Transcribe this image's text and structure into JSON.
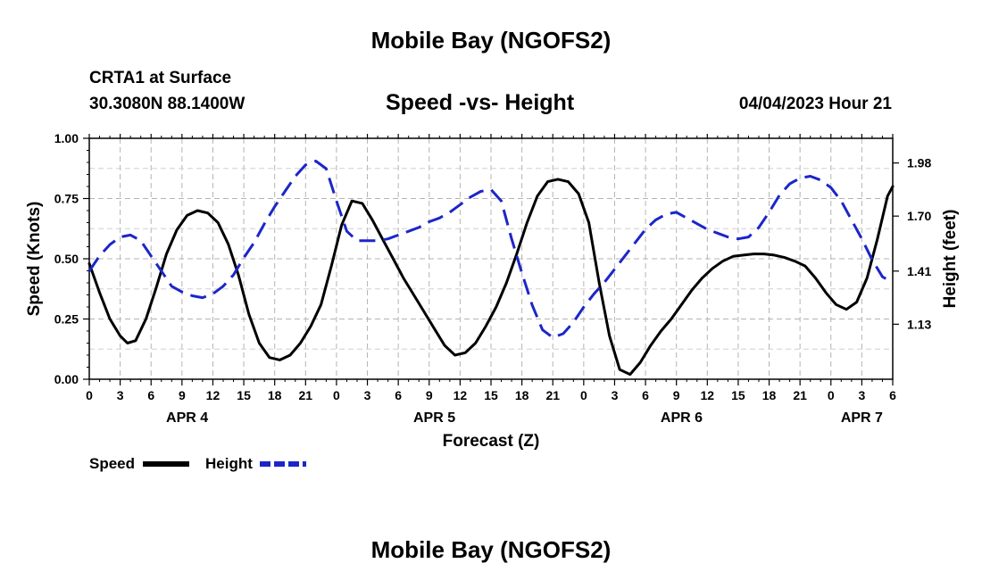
{
  "header": {
    "title": "Mobile Bay (NGOFS2)",
    "station": "CRTA1 at Surface",
    "coords": "30.3080N  88.1400W",
    "subtitle": "Speed -vs- Height",
    "datetime": "04/04/2023 Hour 21"
  },
  "footer": {
    "title": "Mobile Bay (NGOFS2)"
  },
  "chart_data": {
    "type": "line",
    "title": "Speed -vs- Height",
    "xlabel": "Forecast (Z)",
    "ylabel": "Speed (Knots)",
    "y2label": "Height (feet)",
    "x_unit": "hours since 04/04 00Z",
    "xlim": [
      0,
      78
    ],
    "ylim": [
      0,
      1.0
    ],
    "y2lim": [
      0.84,
      2.11
    ],
    "x_tick_labels": [
      "0",
      "3",
      "6",
      "9",
      "12",
      "15",
      "18",
      "21",
      "0",
      "3",
      "6",
      "9",
      "12",
      "15",
      "18",
      "21",
      "0",
      "3",
      "6",
      "9",
      "12",
      "15",
      "18",
      "21",
      "0",
      "3",
      "6"
    ],
    "y_ticks": [
      "0.00",
      "0.25",
      "0.50",
      "0.75",
      "1.00"
    ],
    "y2_ticks": [
      "1.13",
      "1.41",
      "1.70",
      "1.98"
    ],
    "y2_tick_values": [
      1.13,
      1.41,
      1.7,
      1.98
    ],
    "date_labels": [
      {
        "label": "APR 4",
        "x": 9.5
      },
      {
        "label": "APR 5",
        "x": 33.5
      },
      {
        "label": "APR 6",
        "x": 57.5
      },
      {
        "label": "APR 7",
        "x": 75
      }
    ],
    "series": [
      {
        "name": "Speed",
        "color": "#000000",
        "dash": "solid",
        "axis": "left",
        "x": [
          0,
          1,
          2,
          3,
          3.7,
          4.5,
          5.5,
          6.5,
          7.5,
          8.5,
          9.5,
          10.5,
          11.5,
          12.5,
          13.5,
          14.5,
          15.5,
          16.5,
          17.5,
          18.5,
          19.5,
          20.5,
          21.5,
          22.5,
          23.5,
          24.5,
          25.5,
          26.5,
          27.5,
          28.5,
          29.5,
          30.5,
          31.5,
          32.5,
          33.5,
          34.5,
          35.5,
          36.5,
          37.5,
          38.5,
          39.5,
          40.5,
          41.5,
          42.5,
          43.5,
          44.5,
          45.5,
          46.5,
          47.5,
          48.5,
          49.5,
          50.5,
          51.5,
          52.5,
          53.5,
          54.5,
          55.5,
          56.5,
          57.5,
          58.5,
          59.5,
          60.5,
          61.5,
          62.5,
          63.5,
          64.5,
          65.5,
          66.5,
          67.5,
          68.5,
          69.5,
          70.5,
          71.5,
          72.5,
          73.5,
          74.5,
          75.5,
          76.5,
          77.5,
          78
        ],
        "values": [
          0.48,
          0.36,
          0.25,
          0.18,
          0.15,
          0.16,
          0.25,
          0.38,
          0.52,
          0.62,
          0.68,
          0.7,
          0.69,
          0.65,
          0.56,
          0.43,
          0.27,
          0.15,
          0.09,
          0.08,
          0.1,
          0.15,
          0.22,
          0.31,
          0.47,
          0.64,
          0.74,
          0.73,
          0.66,
          0.58,
          0.5,
          0.42,
          0.35,
          0.28,
          0.21,
          0.14,
          0.1,
          0.11,
          0.15,
          0.22,
          0.3,
          0.4,
          0.52,
          0.65,
          0.76,
          0.82,
          0.83,
          0.82,
          0.77,
          0.65,
          0.4,
          0.18,
          0.04,
          0.02,
          0.07,
          0.14,
          0.2,
          0.25,
          0.31,
          0.37,
          0.42,
          0.46,
          0.49,
          0.51,
          0.515,
          0.52,
          0.52,
          0.515,
          0.505,
          0.49,
          0.47,
          0.42,
          0.36,
          0.31,
          0.29,
          0.32,
          0.42,
          0.58,
          0.76,
          0.8
        ]
      },
      {
        "name": "Height",
        "color": "#1c26c8",
        "dash": "dashed",
        "axis": "right",
        "x": [
          0,
          1,
          2,
          3,
          4,
          5,
          6,
          7,
          8,
          9,
          10,
          11,
          12,
          13,
          14,
          15,
          16,
          17,
          18,
          19,
          20,
          21,
          22,
          23,
          24,
          25,
          26,
          27,
          28,
          29,
          30,
          31,
          32,
          33,
          34,
          35,
          36,
          37,
          38,
          39,
          40,
          41,
          42,
          43,
          44,
          45,
          46,
          47,
          48,
          49,
          50,
          51,
          52,
          53,
          54,
          55,
          56,
          57,
          58,
          59,
          60,
          61,
          62,
          63,
          64,
          65,
          66,
          67,
          68,
          69,
          70,
          71,
          72,
          73,
          74,
          75,
          76,
          77,
          78
        ],
        "values": [
          1.41,
          1.49,
          1.55,
          1.59,
          1.6,
          1.57,
          1.49,
          1.41,
          1.33,
          1.3,
          1.28,
          1.27,
          1.29,
          1.33,
          1.39,
          1.48,
          1.56,
          1.66,
          1.75,
          1.83,
          1.91,
          1.97,
          1.99,
          1.95,
          1.78,
          1.62,
          1.57,
          1.57,
          1.57,
          1.58,
          1.6,
          1.62,
          1.64,
          1.67,
          1.69,
          1.72,
          1.76,
          1.8,
          1.83,
          1.84,
          1.78,
          1.58,
          1.4,
          1.23,
          1.1,
          1.06,
          1.08,
          1.14,
          1.22,
          1.29,
          1.35,
          1.42,
          1.49,
          1.56,
          1.63,
          1.68,
          1.71,
          1.72,
          1.69,
          1.66,
          1.63,
          1.61,
          1.59,
          1.58,
          1.59,
          1.64,
          1.72,
          1.81,
          1.87,
          1.9,
          1.91,
          1.89,
          1.85,
          1.78,
          1.68,
          1.58,
          1.47,
          1.38,
          1.35
        ]
      }
    ],
    "legend": [
      {
        "label": "Speed",
        "color": "#000000",
        "dash": "solid"
      },
      {
        "label": "Height",
        "color": "#1c26c8",
        "dash": "dashed"
      }
    ],
    "grid": true,
    "legend_position": "bottom-left"
  }
}
